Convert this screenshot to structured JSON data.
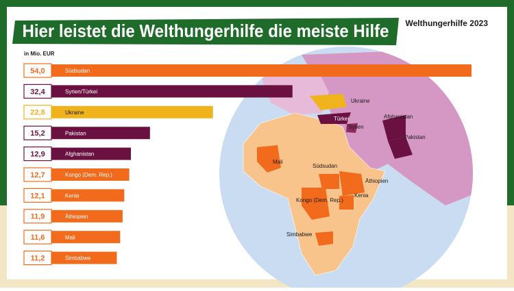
{
  "chart_data": {
    "type": "hbar",
    "title": "Hier leistet die Welthungerhilfe die meiste Hilfe",
    "source": "Welthungerhilfe 2023",
    "unit_label": "in Mio. EUR",
    "categories": [
      "Südsudan",
      "Syrien/Türkei",
      "Ukraine",
      "Pakistan",
      "Afghanistan",
      "Kongo (Dem. Rep.)",
      "Kenia",
      "Äthiopien",
      "Mali",
      "Simbabwe"
    ],
    "values": [
      54.0,
      32.4,
      22.8,
      15.2,
      12.9,
      12.7,
      12.1,
      11.9,
      11.6,
      11.2
    ],
    "value_labels": [
      "54,0",
      "32,4",
      "22,8",
      "15,2",
      "12,9",
      "12,7",
      "12,1",
      "11,9",
      "11,6",
      "11,2"
    ],
    "colors": [
      "#f26a1b",
      "#6b1142",
      "#f0b31c",
      "#6b1142",
      "#6b1142",
      "#f26a1b",
      "#f26a1b",
      "#f26a1b",
      "#f26a1b",
      "#f26a1b"
    ]
  },
  "map": {
    "labels": [
      "Ukraine",
      "Türkei",
      "Syrien",
      "Afghanistan",
      "Pakistan",
      "Mali",
      "Südsudan",
      "Äthiopien",
      "Kenia",
      "Kongo (Dem. Rep.)",
      "Simbabwe"
    ]
  }
}
